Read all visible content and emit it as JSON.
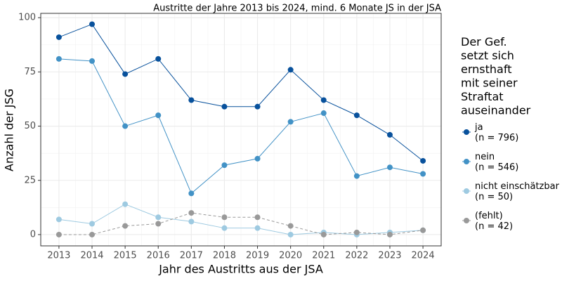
{
  "chart_data": {
    "type": "line",
    "title": "Austritte der Jahre 2013 bis 2024, mind. 6 Monate JS in der JSA",
    "x_label": "Jahr des Austritts aus der JSA",
    "y_label": "Anzahl der JSG",
    "legend_title": "Der Gef.\nsetzt sich\nernsthaft\nmit seiner\nStraftat\nauseinander",
    "legend": "right",
    "grid": true,
    "x": [
      2013,
      2014,
      2015,
      2016,
      2017,
      2018,
      2019,
      2020,
      2021,
      2022,
      2023,
      2024
    ],
    "xlim": [
      2012.45,
      2024.55
    ],
    "xticks": [
      2013,
      2014,
      2015,
      2016,
      2017,
      2018,
      2019,
      2020,
      2021,
      2022,
      2023,
      2024
    ],
    "ylim": [
      -5.2,
      102
    ],
    "yticks": [
      0,
      25,
      50,
      75,
      100
    ],
    "series": [
      {
        "name": "ja\n(n = 796)",
        "color": "#08519c",
        "dashed": false,
        "values": [
          91,
          97,
          74,
          81,
          62,
          59,
          59,
          76,
          62,
          55,
          46,
          34
        ]
      },
      {
        "name": "nein\n(n = 546)",
        "color": "#4292c6",
        "dashed": false,
        "values": [
          81,
          80,
          50,
          55,
          19,
          32,
          35,
          52,
          56,
          27,
          31,
          28
        ]
      },
      {
        "name": "nicht einschätzbar\n(n = 50)",
        "color": "#9ecae1",
        "dashed": false,
        "values": [
          7,
          5,
          14,
          8,
          6,
          3,
          3,
          0,
          1,
          0,
          1,
          2
        ]
      },
      {
        "name": "(fehlt)\n(n = 42)",
        "color": "#999999",
        "dashed": true,
        "values": [
          0,
          0,
          4,
          5,
          10,
          8,
          8,
          4,
          0,
          1,
          0,
          2
        ]
      }
    ]
  }
}
